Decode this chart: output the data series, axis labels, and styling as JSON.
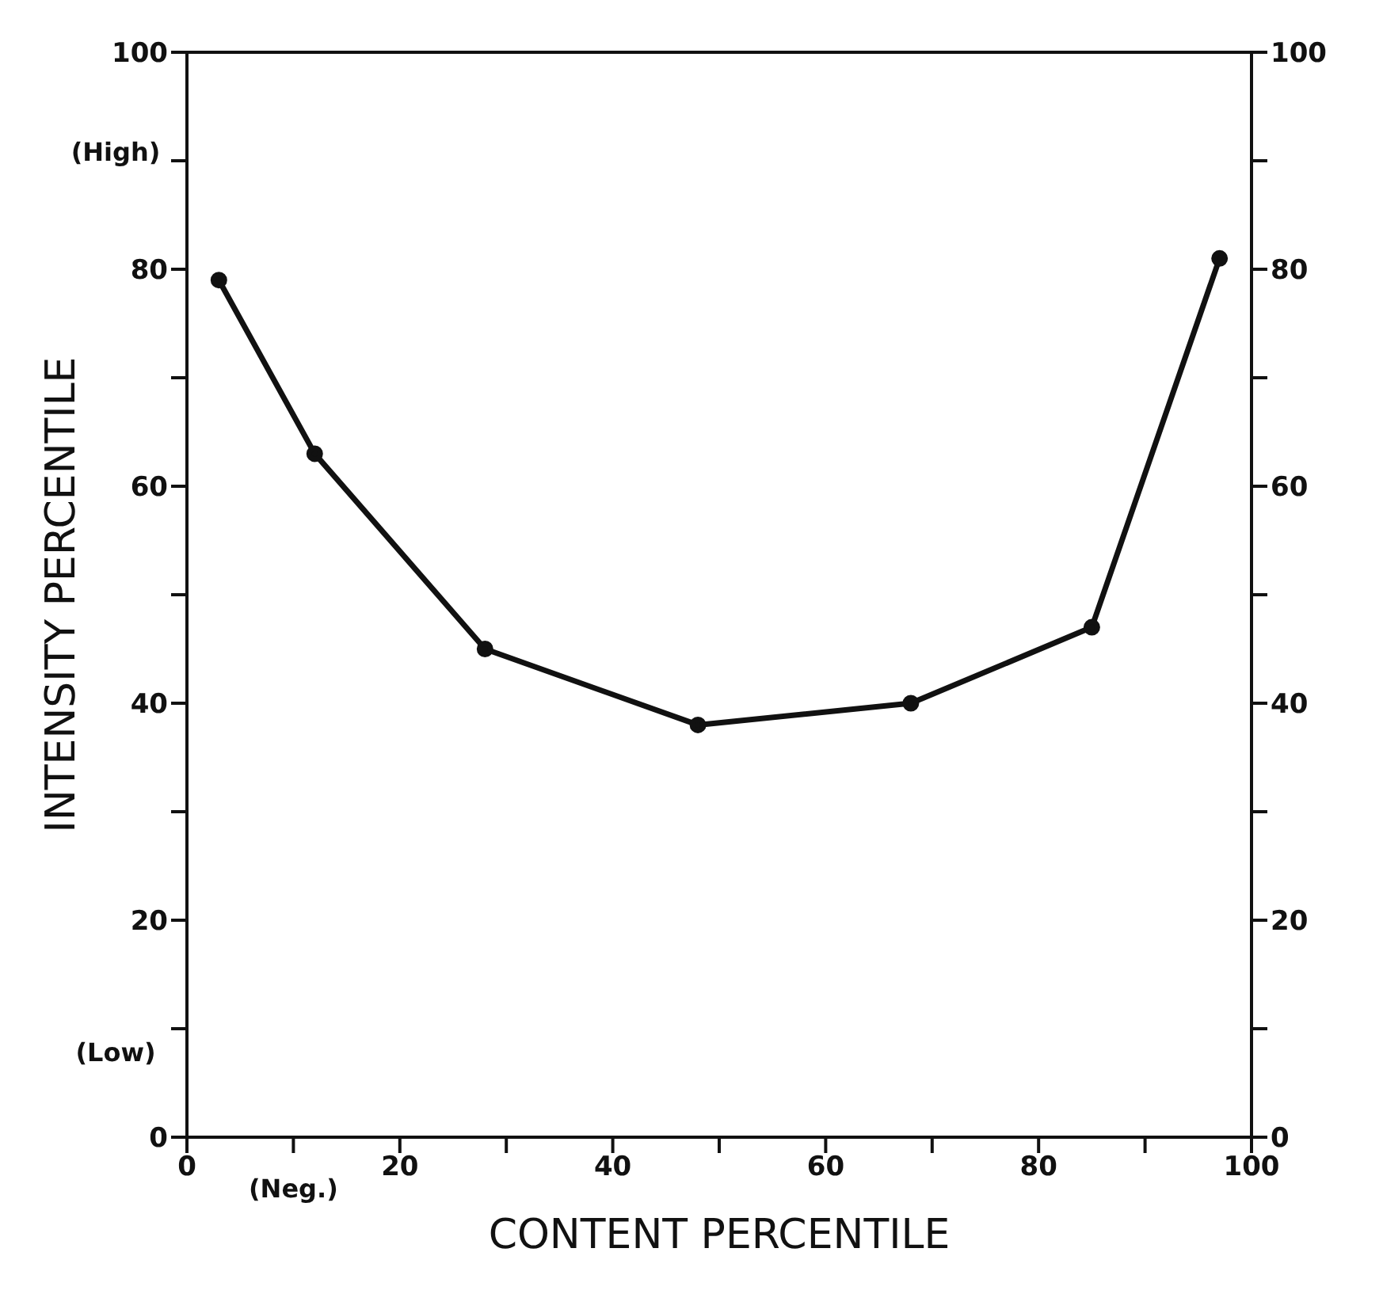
{
  "chart_data": {
    "type": "line",
    "xlabel": "CONTENT   PERCENTILE",
    "ylabel": "INTENSITY  PERCENTILE",
    "x": [
      3,
      12,
      28,
      48,
      68,
      85,
      97
    ],
    "series": [
      {
        "color": "#111111",
        "values": [
          79,
          63,
          45,
          38,
          40,
          47,
          81
        ]
      }
    ],
    "xlim": [
      0,
      100
    ],
    "xticks": [
      0,
      {
        "value": 10,
        "label": null
      },
      20,
      {
        "value": 30,
        "label": null
      },
      40,
      {
        "value": 50,
        "label": null
      },
      60,
      {
        "value": 70,
        "label": null
      },
      80,
      {
        "value": 90,
        "label": null
      },
      100
    ],
    "ylim": [
      0,
      100
    ],
    "yticks": [
      0,
      {
        "value": 10,
        "label": null
      },
      20,
      {
        "value": 30,
        "label": null
      },
      40,
      {
        "value": 50,
        "label": null
      },
      60,
      {
        "value": 70,
        "label": null
      },
      80,
      {
        "value": 90,
        "label": null
      },
      100
    ],
    "y2lim": [
      0,
      100
    ],
    "y2ticks": [
      0,
      {
        "value": 10,
        "label": null
      },
      20,
      {
        "value": 30,
        "label": null
      },
      40,
      {
        "value": 50,
        "label": null
      },
      60,
      {
        "value": 70,
        "label": null
      },
      80,
      {
        "value": 90,
        "label": null
      },
      100
    ],
    "annotations": [
      "(High)",
      "(Low)",
      "(Neg.)"
    ],
    "marker": "circle",
    "line_style": "solid",
    "grid": false
  }
}
